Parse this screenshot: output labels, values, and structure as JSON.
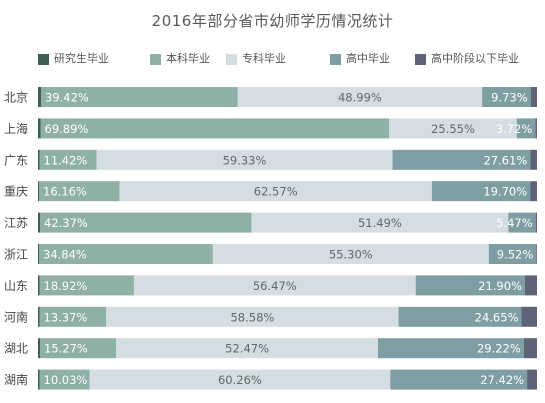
{
  "chart_data": {
    "type": "bar",
    "orientation": "horizontal",
    "stacked": true,
    "percent": true,
    "title": "2016年部分省市幼师学历情况统计",
    "xlim": [
      0,
      100
    ],
    "grid": false,
    "legend_position": "top",
    "categories": [
      "北京",
      "上海",
      "广东",
      "重庆",
      "江苏",
      "浙江",
      "山东",
      "河南",
      "湖北",
      "湖南"
    ],
    "series": [
      {
        "name": "研究生毕业",
        "color": "#3f5f57",
        "values": [
          0.6,
          0.5,
          0.3,
          0.2,
          0.4,
          0.2,
          0.3,
          0.3,
          0.4,
          0.3
        ]
      },
      {
        "name": "本科毕业",
        "color": "#8fb0a4",
        "values": [
          39.42,
          69.89,
          11.42,
          16.16,
          42.37,
          34.84,
          18.92,
          13.37,
          15.27,
          10.03
        ]
      },
      {
        "name": "专科毕业",
        "color": "#d3dde2",
        "values": [
          48.99,
          25.55,
          59.33,
          62.57,
          51.49,
          55.3,
          56.47,
          58.58,
          52.47,
          60.26
        ]
      },
      {
        "name": "高中毕业",
        "color": "#7e9ea4",
        "values": [
          9.73,
          3.72,
          27.61,
          19.7,
          5.47,
          9.52,
          21.9,
          24.65,
          29.22,
          27.42
        ]
      },
      {
        "name": "高中阶段以下毕业",
        "color": "#5d6478",
        "values": [
          1.26,
          0.34,
          1.34,
          1.37,
          0.27,
          0.14,
          2.41,
          3.1,
          2.64,
          1.99
        ]
      }
    ],
    "data_labels": {
      "本科毕业": [
        "39.42%",
        "69.89%",
        "11.42%",
        "16.16%",
        "42.37%",
        "34.84%",
        "18.92%",
        "13.37%",
        "15.27%",
        "10.03%"
      ],
      "专科毕业": [
        "48.99%",
        "25.55%",
        "59.33%",
        "62.57%",
        "51.49%",
        "55.30%",
        "56.47%",
        "58.58%",
        "52.47%",
        "60.26%"
      ],
      "高中毕业": [
        "9.73%",
        "3.72%",
        "27.61%",
        "19.70%",
        "5.47%",
        "9.52%",
        "21.90%",
        "24.65%",
        "29.22%",
        "27.42%"
      ]
    }
  }
}
